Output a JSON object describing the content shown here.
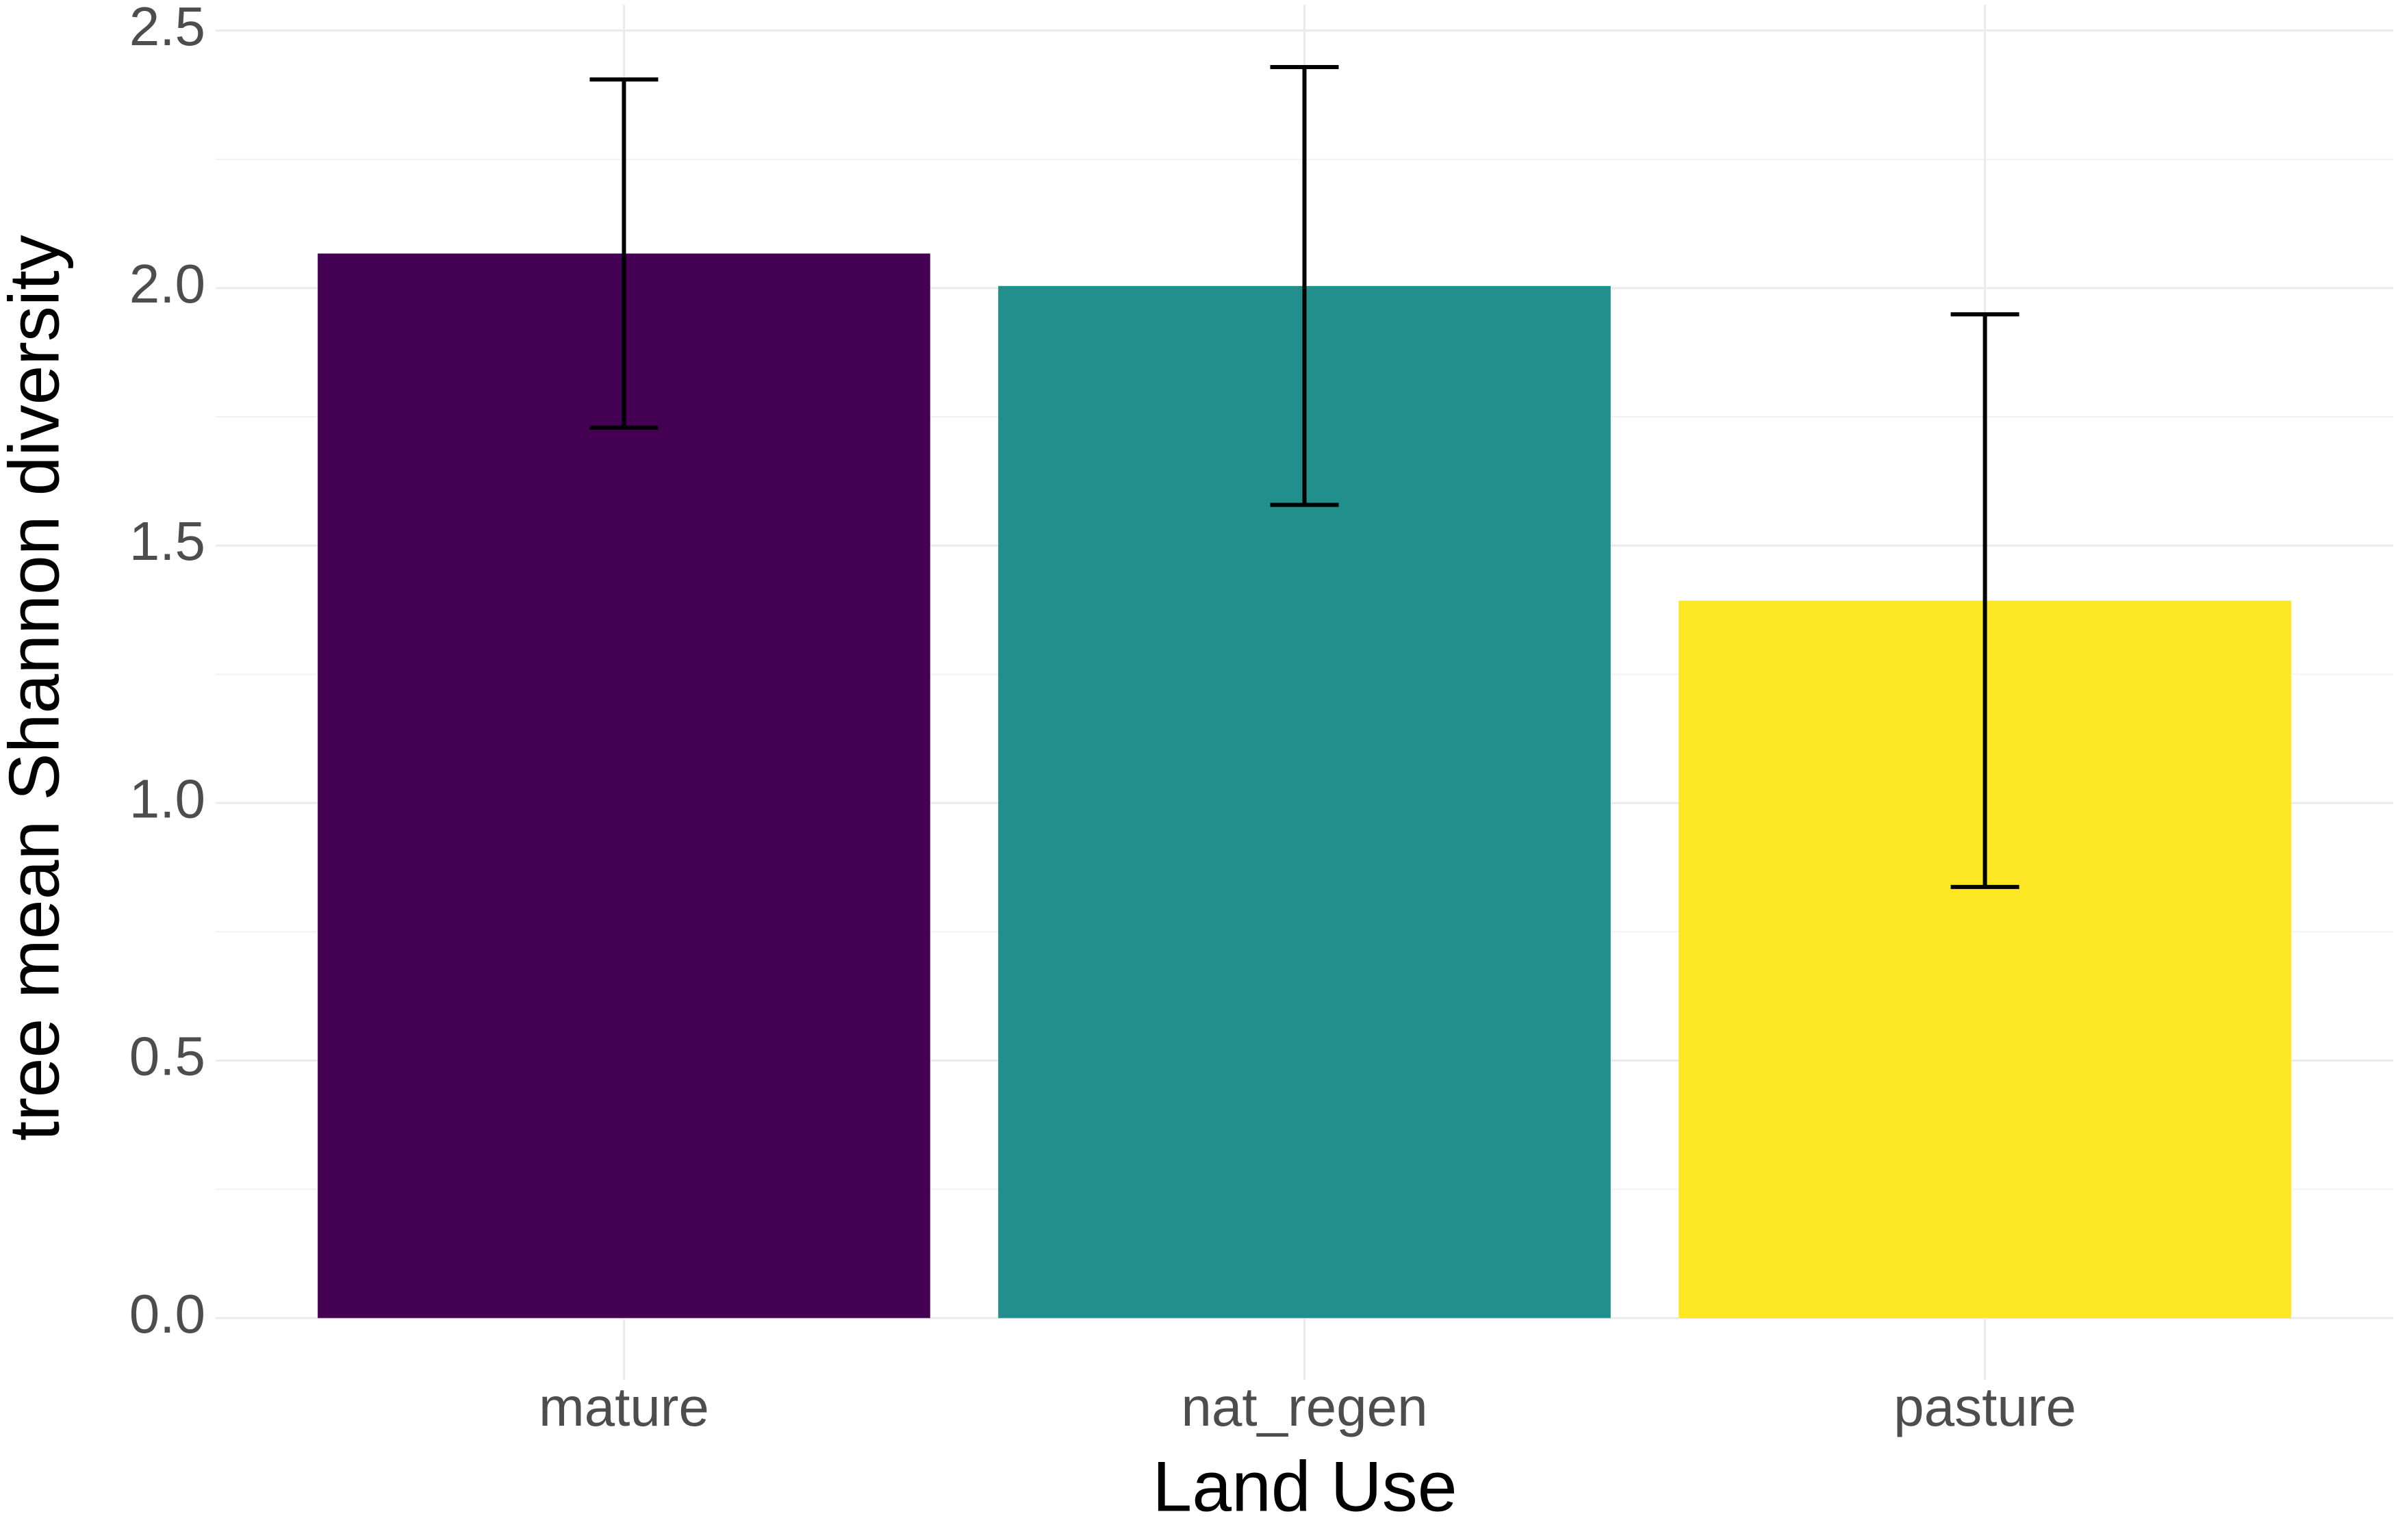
{
  "chart_data": {
    "type": "bar",
    "x_label": "Land Use",
    "y_label": "tree mean Shannon diversity",
    "categories": [
      "mature",
      "nat_regen",
      "pasture"
    ],
    "values": [
      2.067,
      2.004,
      1.393
    ],
    "errors": [
      0.338,
      0.425,
      0.556
    ],
    "colors": [
      "#440154",
      "#21908c",
      "#fde725"
    ],
    "error_color": "#000000",
    "ylim": [
      -0.12,
      2.55
    ],
    "yticks": [
      {
        "value": 0,
        "label": "0.0"
      },
      {
        "value": 0.5,
        "label": "0.5"
      },
      {
        "value": 1,
        "label": "1.0"
      },
      {
        "value": 1.5,
        "label": "1.5"
      },
      {
        "value": 2,
        "label": "2.0"
      },
      {
        "value": 2.5,
        "label": "2.5"
      }
    ],
    "minor_yticks": [
      0.25,
      0.75,
      1.25,
      1.75,
      2.25
    ],
    "grid": true
  }
}
